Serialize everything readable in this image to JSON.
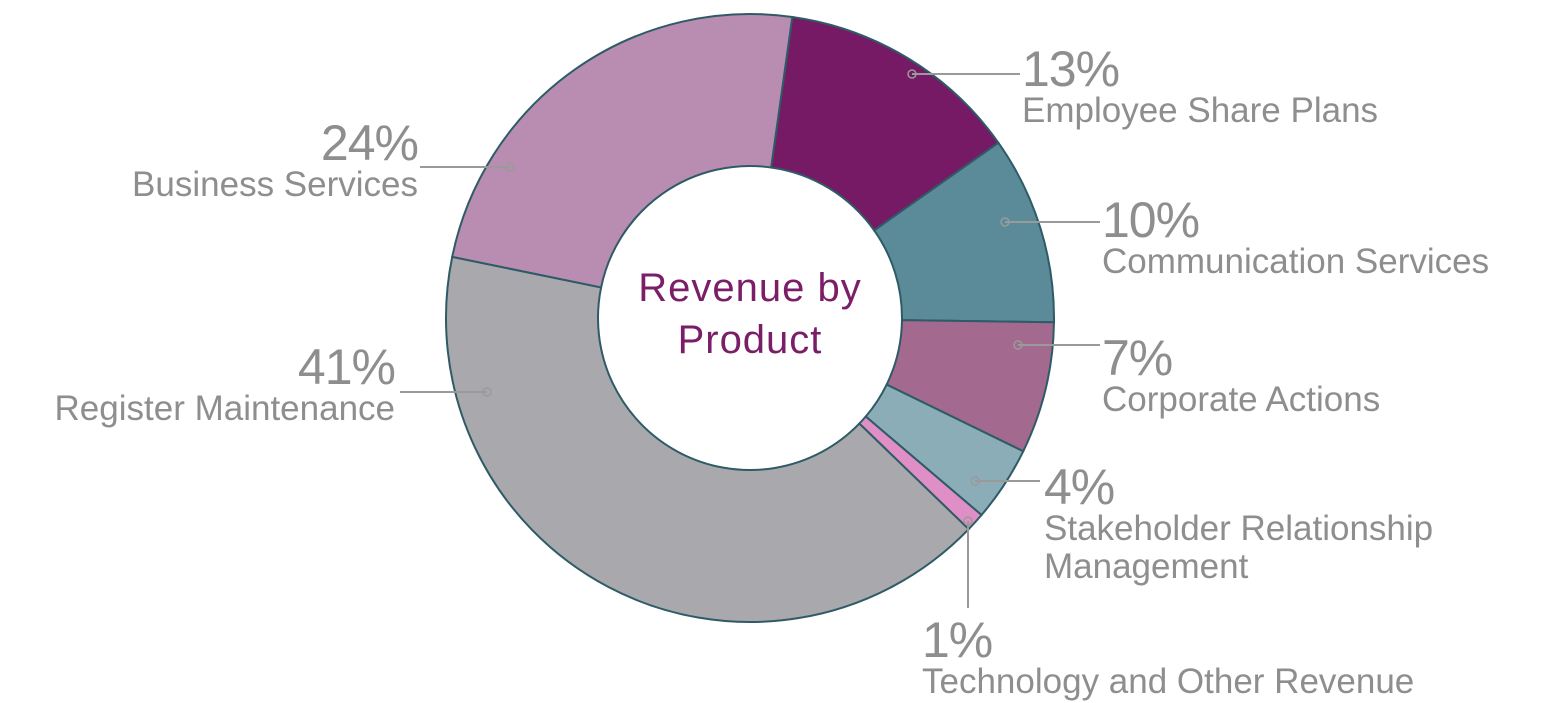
{
  "chart_data": {
    "type": "donut",
    "title": "Revenue by Product",
    "categories": [
      "Employee Share Plans",
      "Communication Services",
      "Corporate Actions",
      "Stakeholder Relationship Management",
      "Technology and Other Revenue",
      "Register Maintenance",
      "Business Services"
    ],
    "values": [
      13,
      10,
      7,
      4,
      1,
      41,
      24
    ],
    "value_labels": [
      "13%",
      "10%",
      "7%",
      "4%",
      "1%",
      "41%",
      "24%"
    ],
    "colors": [
      "#761a66",
      "#5b8b99",
      "#a3698f",
      "#8badb8",
      "#e08fc6",
      "#a9a9ad",
      "#b98db1"
    ]
  }
}
